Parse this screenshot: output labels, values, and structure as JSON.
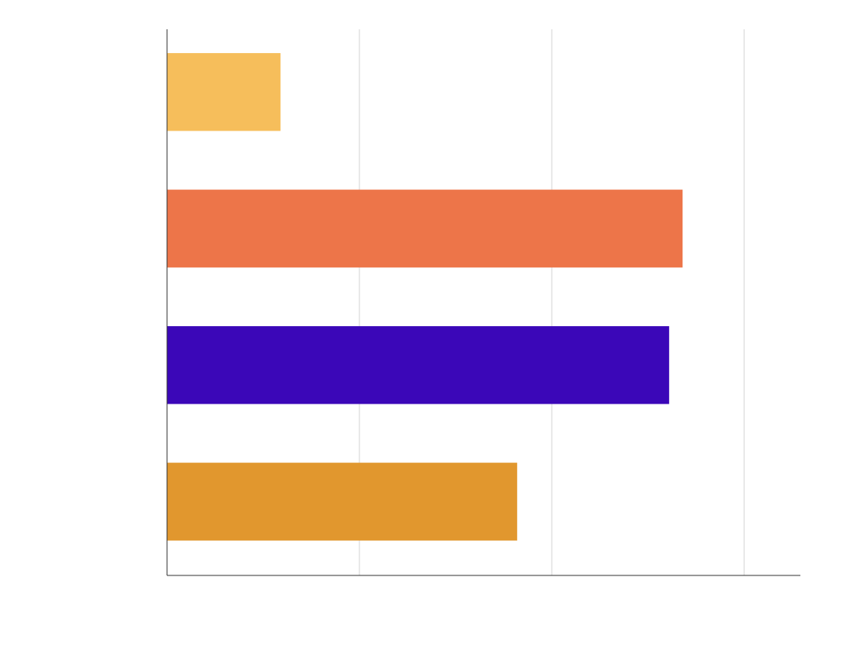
{
  "chart_data": {
    "type": "bar",
    "orientation": "horizontal",
    "title": "",
    "xlabel": "",
    "ylabel": "",
    "categories": [
      "",
      "",
      "",
      ""
    ],
    "values": [
      0.59,
      2.68,
      2.61,
      1.82
    ],
    "colors": [
      "#F6BE5B",
      "#ED7549",
      "#3B07B8",
      "#E1972E"
    ],
    "xlim": [
      0,
      3.3
    ],
    "xticks": [
      0,
      1,
      2,
      3
    ],
    "grid": true,
    "legend": "none"
  }
}
